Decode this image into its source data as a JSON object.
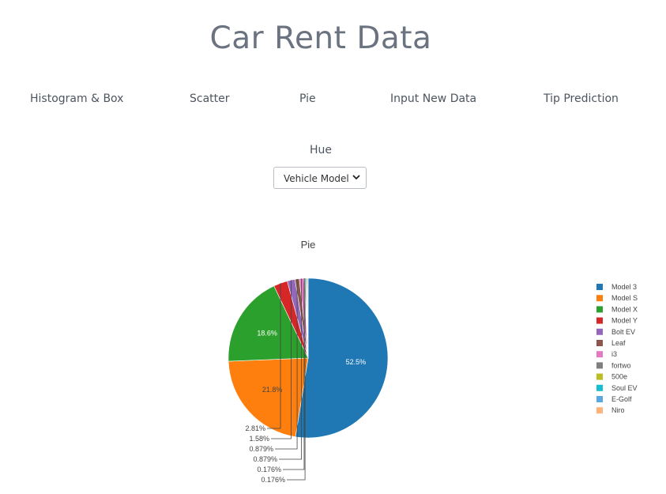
{
  "header": {
    "title": "Car Rent Data"
  },
  "nav": {
    "tabs": [
      {
        "label": "Histogram & Box"
      },
      {
        "label": "Scatter"
      },
      {
        "label": "Pie"
      },
      {
        "label": "Input New Data"
      },
      {
        "label": "Tip Prediction"
      }
    ]
  },
  "controls": {
    "hue_label": "Hue",
    "hue_select": {
      "value": "Vehicle Model"
    }
  },
  "chart_data": {
    "type": "pie",
    "title": "Pie",
    "legend_position": "right",
    "direction": "clockwise",
    "start": "top",
    "slices": [
      {
        "label": "Model 3",
        "value": 52.5,
        "text": "52.5%",
        "color": "#1f77b4"
      },
      {
        "label": "Model S",
        "value": 21.8,
        "text": "21.8%",
        "color": "#ff7f0e"
      },
      {
        "label": "Model X",
        "value": 18.6,
        "text": "18.6%",
        "color": "#2ca02c"
      },
      {
        "label": "Model Y",
        "value": 2.81,
        "text": "2.81%",
        "color": "#d62728"
      },
      {
        "label": "Bolt EV",
        "value": 1.58,
        "text": "1.58%",
        "color": "#9467bd"
      },
      {
        "label": "Leaf",
        "value": 0.879,
        "text": "0.879%",
        "color": "#8c564b"
      },
      {
        "label": "i3",
        "value": 0.879,
        "text": "0.879%",
        "color": "#e377c2"
      },
      {
        "label": "fortwo",
        "value": 0.176,
        "text": "0.176%",
        "color": "#7f7f7f"
      },
      {
        "label": "500e",
        "value": 0.176,
        "text": "0.176%",
        "color": "#bcbd22"
      },
      {
        "label": "Soul EV",
        "value": 0.176,
        "text": "",
        "color": "#17becf"
      },
      {
        "label": "E-Golf",
        "value": 0.176,
        "text": "",
        "color": "#5aa8e0"
      },
      {
        "label": "Niro",
        "value": 0.176,
        "text": "",
        "color": "#ffb37a"
      }
    ]
  }
}
